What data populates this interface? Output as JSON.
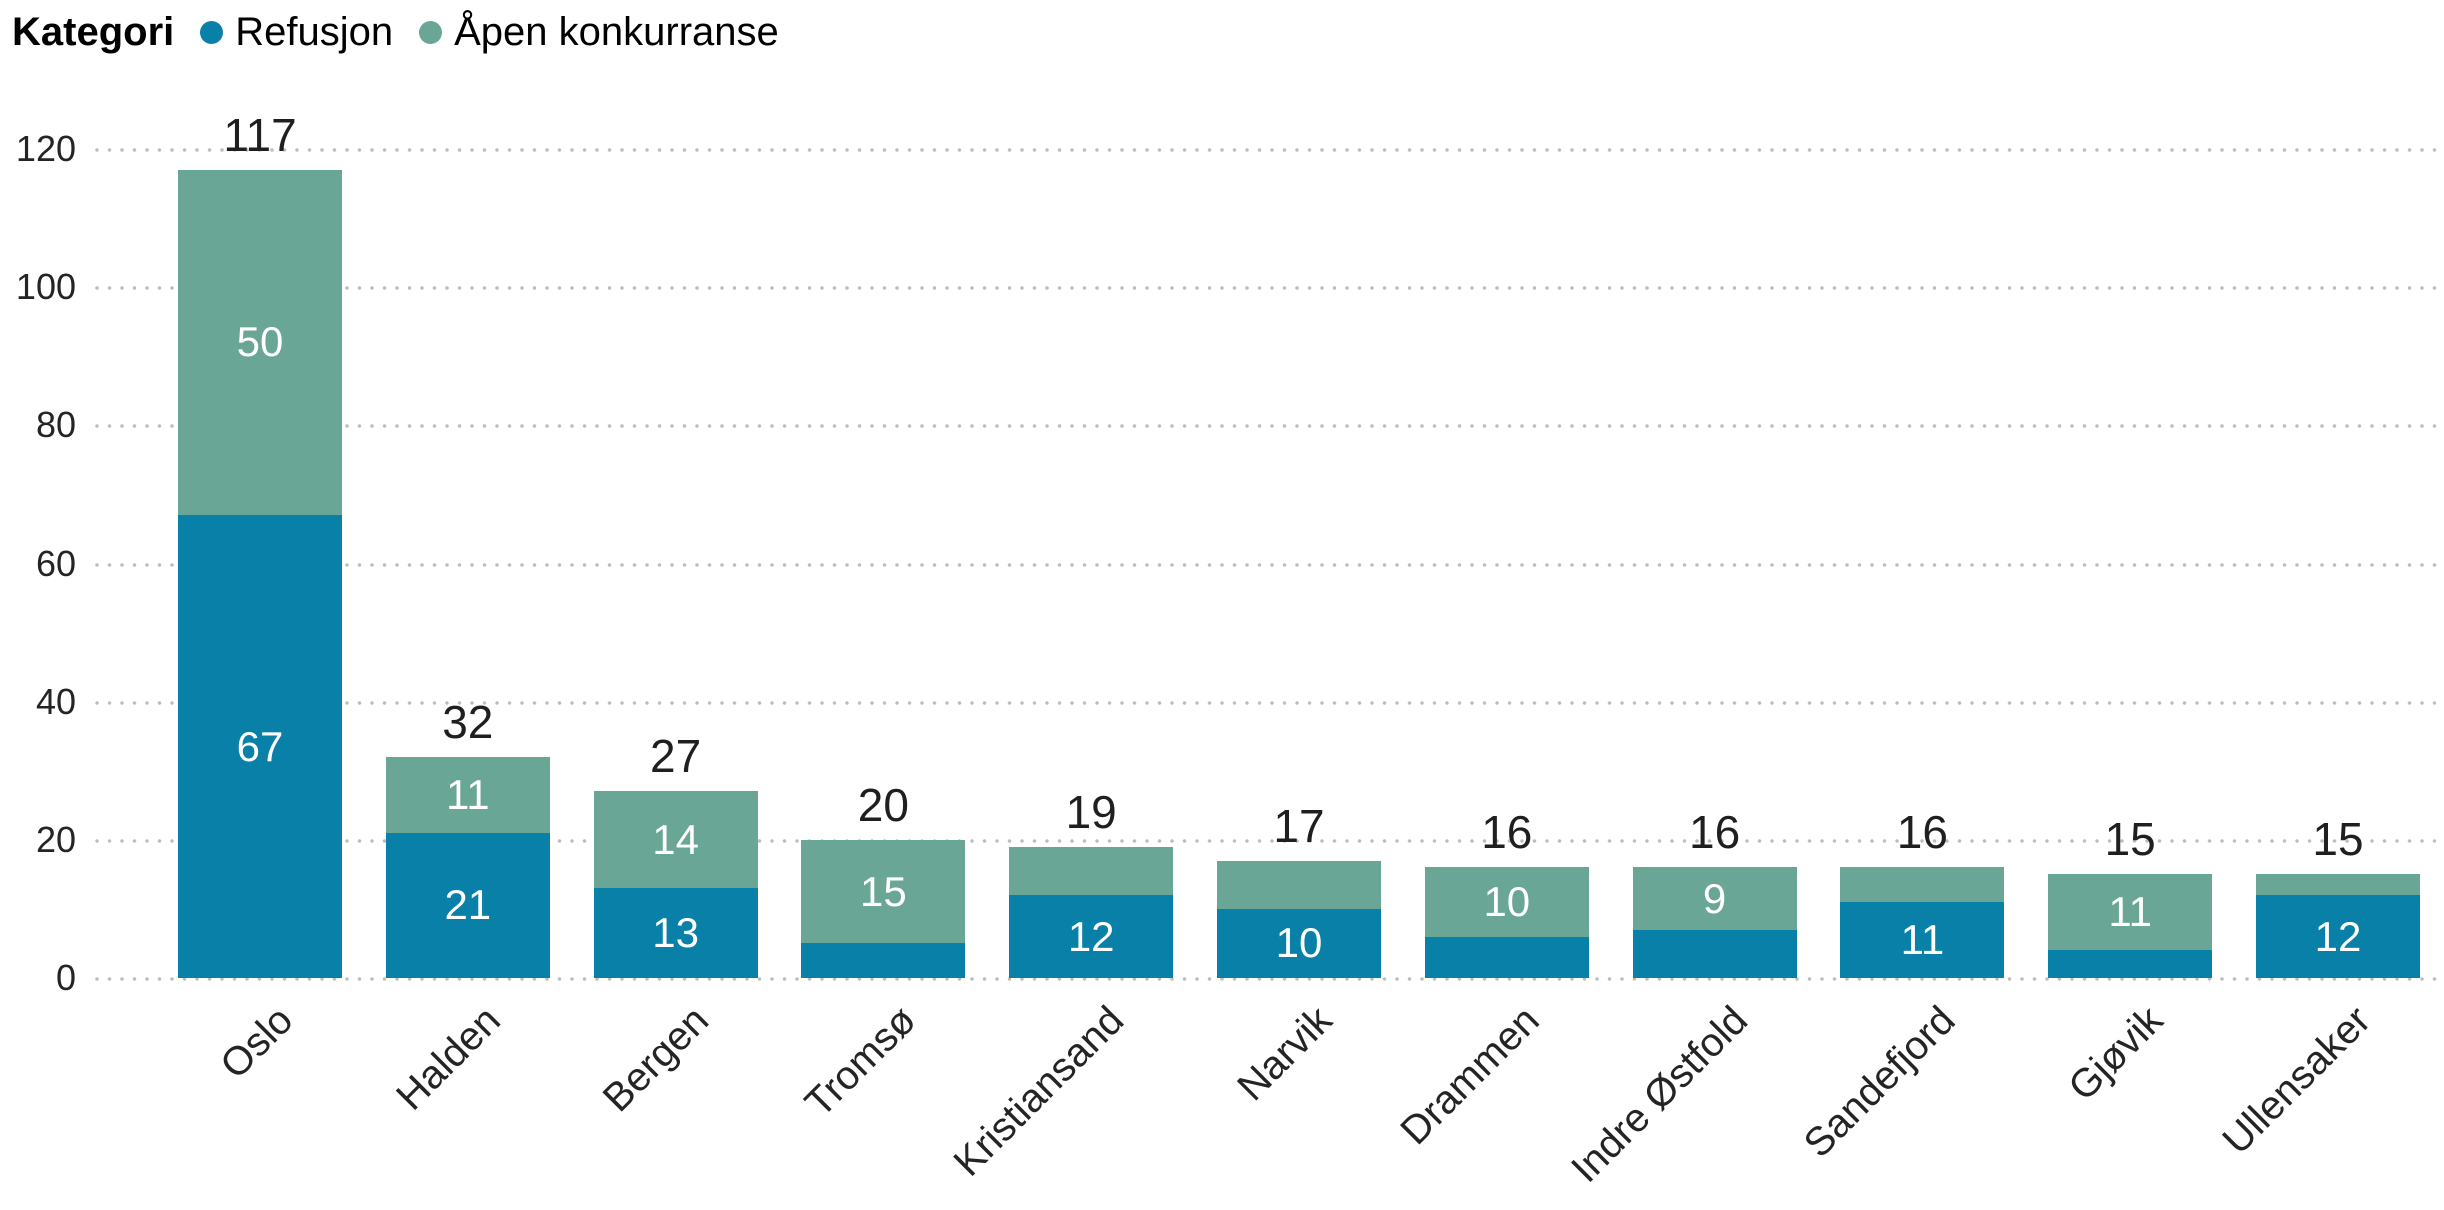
{
  "legend": {
    "title": "Kategori",
    "items": [
      {
        "label": "Refusjon",
        "color": "#0880a8"
      },
      {
        "label": "Åpen konkurranse",
        "color": "#6aa695"
      }
    ]
  },
  "chart_data": {
    "type": "bar",
    "stacked": true,
    "title": "",
    "xlabel": "",
    "ylabel": "",
    "categories": [
      "Oslo",
      "Halden",
      "Bergen",
      "Tromsø",
      "Kristiansand",
      "Narvik",
      "Drammen",
      "Indre Østfold",
      "Sandefjord",
      "Gjøvik",
      "Ullensaker"
    ],
    "series": [
      {
        "name": "Refusjon",
        "color": "#0880a8",
        "values": [
          67,
          21,
          13,
          5,
          12,
          10,
          6,
          7,
          11,
          4,
          12
        ]
      },
      {
        "name": "Åpen konkurranse",
        "color": "#6aa695",
        "values": [
          50,
          11,
          14,
          15,
          7,
          7,
          10,
          9,
          5,
          11,
          3
        ]
      }
    ],
    "totals": [
      117,
      32,
      27,
      20,
      19,
      17,
      16,
      16,
      16,
      15,
      15
    ],
    "ylim": [
      0,
      120
    ],
    "yticks": [
      0,
      20,
      40,
      60,
      80,
      100,
      120
    ],
    "grid": "dotted horizontal",
    "grid_color": "#bdbdbd",
    "legend_position": "top-left",
    "value_label_color": "#ffffff",
    "total_label_color": "#1f1f1f",
    "axis_text_color": "#252423"
  }
}
